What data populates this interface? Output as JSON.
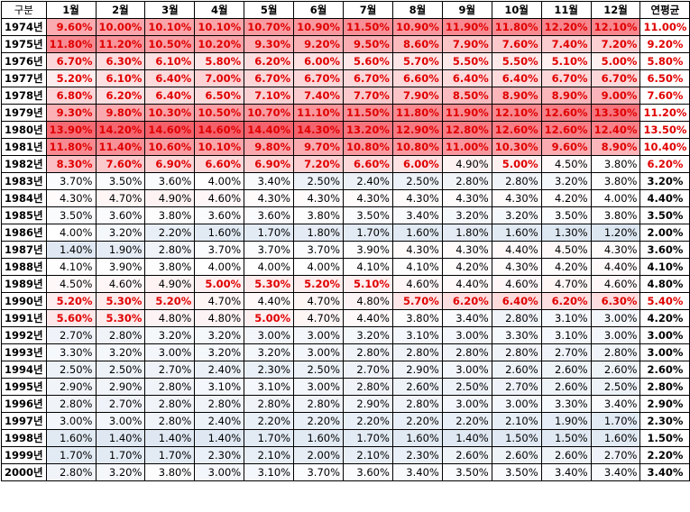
{
  "header": [
    "구분",
    "1월",
    "2월",
    "3월",
    "4월",
    "5월",
    "6월",
    "7월",
    "8월",
    "9월",
    "10월",
    "11월",
    "12월",
    "연평균"
  ],
  "rows": [
    {
      "year": "1974년",
      "values": [
        "9.60%",
        "10.00%",
        "10.10%",
        "10.10%",
        "10.70%",
        "10.90%",
        "11.50%",
        "10.90%",
        "11.90%",
        "11.80%",
        "12.20%",
        "12.10%"
      ],
      "avg": "11.00%"
    },
    {
      "year": "1975년",
      "values": [
        "11.80%",
        "11.20%",
        "10.50%",
        "10.20%",
        "9.30%",
        "9.20%",
        "9.50%",
        "8.60%",
        "7.90%",
        "7.60%",
        "7.40%",
        "7.20%"
      ],
      "avg": "9.20%"
    },
    {
      "year": "1976년",
      "values": [
        "6.70%",
        "6.30%",
        "6.10%",
        "5.80%",
        "6.20%",
        "6.00%",
        "5.60%",
        "5.70%",
        "5.50%",
        "5.50%",
        "5.10%",
        "5.00%"
      ],
      "avg": "5.80%"
    },
    {
      "year": "1977년",
      "values": [
        "5.20%",
        "6.10%",
        "6.40%",
        "7.00%",
        "6.70%",
        "6.70%",
        "6.70%",
        "6.60%",
        "6.40%",
        "6.40%",
        "6.70%",
        "6.70%"
      ],
      "avg": "6.50%"
    },
    {
      "year": "1978년",
      "values": [
        "6.80%",
        "6.20%",
        "6.40%",
        "6.50%",
        "7.10%",
        "7.40%",
        "7.70%",
        "7.90%",
        "8.50%",
        "8.90%",
        "8.90%",
        "9.00%"
      ],
      "avg": "7.60%"
    },
    {
      "year": "1979년",
      "values": [
        "9.30%",
        "9.80%",
        "10.30%",
        "10.50%",
        "10.70%",
        "11.10%",
        "11.50%",
        "11.80%",
        "11.90%",
        "12.10%",
        "12.60%",
        "13.30%"
      ],
      "avg": "11.20%"
    },
    {
      "year": "1980년",
      "values": [
        "13.90%",
        "14.20%",
        "14.60%",
        "14.60%",
        "14.40%",
        "14.30%",
        "13.20%",
        "12.90%",
        "12.80%",
        "12.60%",
        "12.60%",
        "12.40%"
      ],
      "avg": "13.50%"
    },
    {
      "year": "1981년",
      "values": [
        "11.80%",
        "11.40%",
        "10.60%",
        "10.10%",
        "9.80%",
        "9.70%",
        "10.80%",
        "10.80%",
        "11.00%",
        "10.30%",
        "9.60%",
        "8.90%"
      ],
      "avg": "10.40%"
    },
    {
      "year": "1982년",
      "values": [
        "8.30%",
        "7.60%",
        "6.90%",
        "6.60%",
        "6.90%",
        "7.20%",
        "6.60%",
        "6.00%",
        "4.90%",
        "5.00%",
        "4.50%",
        "3.80%"
      ],
      "avg": "6.20%"
    },
    {
      "year": "1983년",
      "values": [
        "3.70%",
        "3.50%",
        "3.60%",
        "4.00%",
        "3.40%",
        "2.50%",
        "2.40%",
        "2.50%",
        "2.80%",
        "2.80%",
        "3.20%",
        "3.80%"
      ],
      "avg": "3.20%"
    },
    {
      "year": "1984년",
      "values": [
        "4.30%",
        "4.70%",
        "4.90%",
        "4.60%",
        "4.30%",
        "4.30%",
        "4.30%",
        "4.30%",
        "4.30%",
        "4.30%",
        "4.20%",
        "4.00%"
      ],
      "avg": "4.40%"
    },
    {
      "year": "1985년",
      "values": [
        "3.50%",
        "3.60%",
        "3.80%",
        "3.60%",
        "3.60%",
        "3.80%",
        "3.50%",
        "3.40%",
        "3.20%",
        "3.20%",
        "3.50%",
        "3.80%"
      ],
      "avg": "3.50%"
    },
    {
      "year": "1986년",
      "values": [
        "4.00%",
        "3.20%",
        "2.20%",
        "1.60%",
        "1.70%",
        "1.80%",
        "1.70%",
        "1.60%",
        "1.80%",
        "1.60%",
        "1.30%",
        "1.20%"
      ],
      "avg": "2.00%"
    },
    {
      "year": "1987년",
      "values": [
        "1.40%",
        "1.90%",
        "2.80%",
        "3.70%",
        "3.70%",
        "3.70%",
        "3.90%",
        "4.30%",
        "4.30%",
        "4.40%",
        "4.50%",
        "4.30%"
      ],
      "avg": "3.60%"
    },
    {
      "year": "1988년",
      "values": [
        "4.10%",
        "3.90%",
        "3.80%",
        "4.00%",
        "4.00%",
        "4.00%",
        "4.10%",
        "4.10%",
        "4.20%",
        "4.30%",
        "4.20%",
        "4.40%"
      ],
      "avg": "4.10%"
    },
    {
      "year": "1989년",
      "values": [
        "4.50%",
        "4.60%",
        "4.90%",
        "5.00%",
        "5.30%",
        "5.20%",
        "5.10%",
        "4.60%",
        "4.40%",
        "4.60%",
        "4.70%",
        "4.60%"
      ],
      "avg": "4.80%"
    },
    {
      "year": "1990년",
      "values": [
        "5.20%",
        "5.30%",
        "5.20%",
        "4.70%",
        "4.40%",
        "4.70%",
        "4.80%",
        "5.70%",
        "6.20%",
        "6.40%",
        "6.20%",
        "6.30%"
      ],
      "avg": "5.40%"
    },
    {
      "year": "1991년",
      "values": [
        "5.60%",
        "5.30%",
        "4.80%",
        "4.80%",
        "5.00%",
        "4.70%",
        "4.40%",
        "3.80%",
        "3.40%",
        "2.80%",
        "3.10%",
        "3.00%"
      ],
      "avg": "4.20%"
    },
    {
      "year": "1992년",
      "values": [
        "2.70%",
        "2.80%",
        "3.20%",
        "3.20%",
        "3.00%",
        "3.00%",
        "3.20%",
        "3.10%",
        "3.00%",
        "3.30%",
        "3.10%",
        "3.00%"
      ],
      "avg": "3.00%"
    },
    {
      "year": "1993년",
      "values": [
        "3.30%",
        "3.20%",
        "3.00%",
        "3.20%",
        "3.20%",
        "3.00%",
        "2.80%",
        "2.80%",
        "2.80%",
        "2.80%",
        "2.70%",
        "2.80%"
      ],
      "avg": "3.00%"
    },
    {
      "year": "1994년",
      "values": [
        "2.50%",
        "2.50%",
        "2.70%",
        "2.40%",
        "2.30%",
        "2.50%",
        "2.70%",
        "2.90%",
        "3.00%",
        "2.60%",
        "2.60%",
        "2.60%"
      ],
      "avg": "2.60%"
    },
    {
      "year": "1995년",
      "values": [
        "2.90%",
        "2.90%",
        "2.80%",
        "3.10%",
        "3.10%",
        "3.00%",
        "2.80%",
        "2.60%",
        "2.50%",
        "2.70%",
        "2.60%",
        "2.50%"
      ],
      "avg": "2.80%"
    },
    {
      "year": "1996년",
      "values": [
        "2.80%",
        "2.70%",
        "2.80%",
        "2.80%",
        "2.80%",
        "2.80%",
        "2.90%",
        "2.80%",
        "3.00%",
        "3.00%",
        "3.30%",
        "3.40%"
      ],
      "avg": "2.90%"
    },
    {
      "year": "1997년",
      "values": [
        "3.00%",
        "3.00%",
        "2.80%",
        "2.40%",
        "2.20%",
        "2.20%",
        "2.20%",
        "2.20%",
        "2.20%",
        "2.10%",
        "1.90%",
        "1.70%"
      ],
      "avg": "2.30%"
    },
    {
      "year": "1998년",
      "values": [
        "1.60%",
        "1.40%",
        "1.40%",
        "1.40%",
        "1.70%",
        "1.60%",
        "1.70%",
        "1.60%",
        "1.40%",
        "1.50%",
        "1.50%",
        "1.60%"
      ],
      "avg": "1.50%"
    },
    {
      "year": "1999년",
      "values": [
        "1.70%",
        "1.70%",
        "1.70%",
        "2.30%",
        "2.10%",
        "2.00%",
        "2.10%",
        "2.30%",
        "2.60%",
        "2.60%",
        "2.60%",
        "2.70%"
      ],
      "avg": "2.20%"
    },
    {
      "year": "2000년",
      "values": [
        "2.80%",
        "3.20%",
        "3.80%",
        "3.00%",
        "3.10%",
        "3.70%",
        "3.60%",
        "3.40%",
        "3.50%",
        "3.50%",
        "3.40%",
        "3.40%"
      ],
      "avg": "3.40%"
    }
  ],
  "style": {
    "highlight_text_color": "#e00000",
    "red_text_threshold": 5.0,
    "low_value_fill": "#dce6f1",
    "high_value_fill": "#f4606a",
    "mid_value_fill": "#ffffff"
  }
}
